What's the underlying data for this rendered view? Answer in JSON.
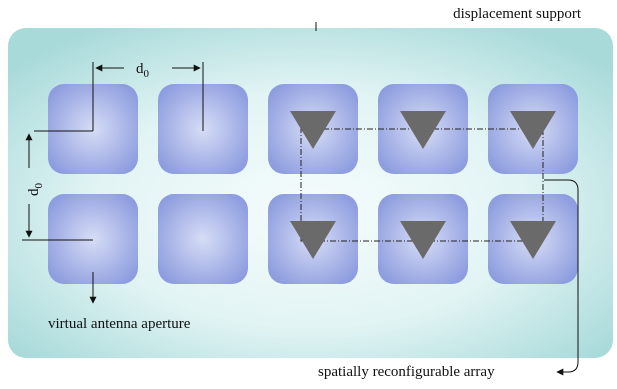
{
  "labels": {
    "displacement_support": "displacement support",
    "virtual_aperture": "virtual antenna aperture",
    "reconfigurable_array": "spatially reconfigurable array",
    "spacing_symbol": "d",
    "spacing_subscript": "0"
  },
  "grid": {
    "rows": 2,
    "columns": 5,
    "antenna_positions": [
      {
        "row": 0,
        "col": 2
      },
      {
        "row": 0,
        "col": 3
      },
      {
        "row": 0,
        "col": 4
      },
      {
        "row": 1,
        "col": 2
      },
      {
        "row": 1,
        "col": 3
      },
      {
        "row": 1,
        "col": 4
      }
    ]
  },
  "colors": {
    "support_edge": "#a9dada",
    "support_center": "#f3fbfb",
    "cell_edge": "#8f9ee0",
    "cell_center": "#cfd7f4",
    "antenna": "#6a6a6a",
    "line": "#111111"
  }
}
